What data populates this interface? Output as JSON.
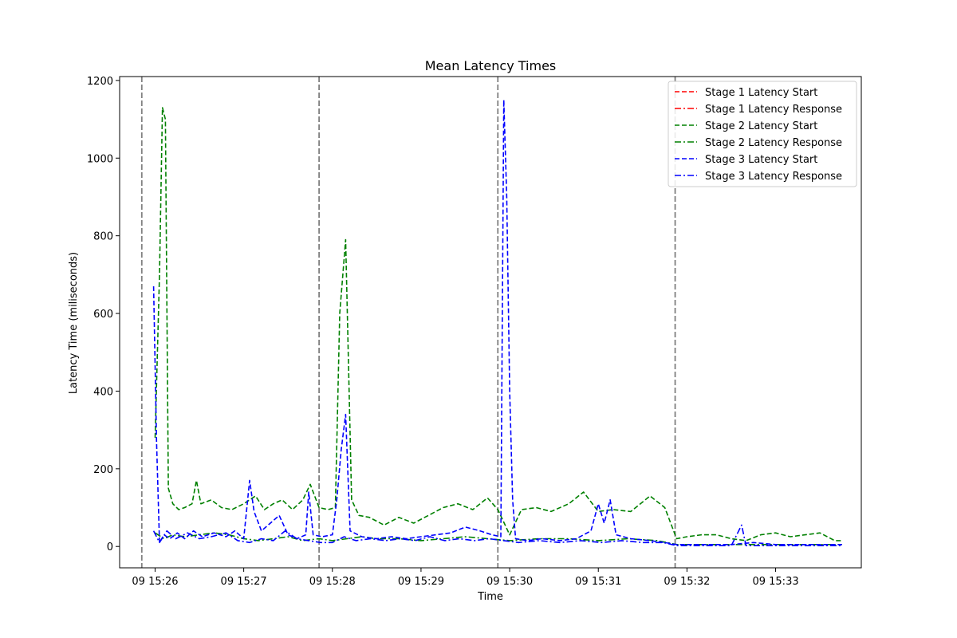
{
  "chart_data": {
    "type": "line",
    "title": "Mean Latency Times",
    "xlabel": "Time",
    "ylabel": "Latency Time (miliseconds)",
    "xlim": [
      "09 15:25:36",
      "09 15:33:58"
    ],
    "ylim": [
      -55,
      1210
    ],
    "x_tick_labels": [
      "09 15:26",
      "09 15:27",
      "09 15:28",
      "09 15:29",
      "09 15:30",
      "09 15:31",
      "09 15:32",
      "09 15:33"
    ],
    "y_ticks": [
      0,
      200,
      400,
      600,
      800,
      1000,
      1200
    ],
    "vlines": [
      "09 15:25:51",
      "09 15:27:51",
      "09 15:29:52",
      "09 15:31:52"
    ],
    "vline_color": "#808080",
    "legend_position": "upper right",
    "series": [
      {
        "name": "Stage 1 Latency Start",
        "color": "#ff0000",
        "dash": "dashed",
        "points": []
      },
      {
        "name": "Stage 1 Latency Response",
        "color": "#ff0000",
        "dash": "dashdot",
        "points": []
      },
      {
        "name": "Stage 2 Latency Start",
        "color": "#008000",
        "dash": "dashed",
        "points": [
          [
            "09 15:26:00",
            280
          ],
          [
            "09 15:26:03",
            700
          ],
          [
            "09 15:26:05",
            1130
          ],
          [
            "09 15:26:07",
            1100
          ],
          [
            "09 15:26:09",
            150
          ],
          [
            "09 15:26:12",
            110
          ],
          [
            "09 15:26:16",
            95
          ],
          [
            "09 15:26:20",
            100
          ],
          [
            "09 15:26:25",
            110
          ],
          [
            "09 15:26:28",
            170
          ],
          [
            "09 15:26:31",
            110
          ],
          [
            "09 15:26:38",
            120
          ],
          [
            "09 15:26:45",
            100
          ],
          [
            "09 15:26:52",
            95
          ],
          [
            "09 15:27:00",
            110
          ],
          [
            "09 15:27:08",
            130
          ],
          [
            "09 15:27:14",
            95
          ],
          [
            "09 15:27:20",
            110
          ],
          [
            "09 15:27:26",
            120
          ],
          [
            "09 15:27:33",
            95
          ],
          [
            "09 15:27:40",
            120
          ],
          [
            "09 15:27:45",
            160
          ],
          [
            "09 15:27:51",
            100
          ],
          [
            "09 15:27:57",
            95
          ],
          [
            "09 15:28:02",
            100
          ],
          [
            "09 15:28:05",
            600
          ],
          [
            "09 15:28:09",
            790
          ],
          [
            "09 15:28:13",
            120
          ],
          [
            "09 15:28:18",
            80
          ],
          [
            "09 15:28:25",
            75
          ],
          [
            "09 15:28:35",
            55
          ],
          [
            "09 15:28:45",
            75
          ],
          [
            "09 15:28:55",
            60
          ],
          [
            "09 15:29:05",
            80
          ],
          [
            "09 15:29:15",
            100
          ],
          [
            "09 15:29:25",
            110
          ],
          [
            "09 15:29:35",
            95
          ],
          [
            "09 15:29:45",
            125
          ],
          [
            "09 15:29:52",
            95
          ],
          [
            "09 15:30:00",
            30
          ],
          [
            "09 15:30:08",
            95
          ],
          [
            "09 15:30:18",
            100
          ],
          [
            "09 15:30:28",
            90
          ],
          [
            "09 15:30:40",
            110
          ],
          [
            "09 15:30:50",
            140
          ],
          [
            "09 15:31:00",
            90
          ],
          [
            "09 15:31:10",
            95
          ],
          [
            "09 15:31:22",
            90
          ],
          [
            "09 15:31:35",
            130
          ],
          [
            "09 15:31:45",
            100
          ],
          [
            "09 15:31:53",
            20
          ],
          [
            "09 15:32:00",
            25
          ],
          [
            "09 15:32:10",
            30
          ],
          [
            "09 15:32:20",
            30
          ],
          [
            "09 15:32:30",
            20
          ],
          [
            "09 15:32:40",
            15
          ],
          [
            "09 15:32:50",
            30
          ],
          [
            "09 15:33:00",
            35
          ],
          [
            "09 15:33:10",
            25
          ],
          [
            "09 15:33:20",
            30
          ],
          [
            "09 15:33:30",
            35
          ],
          [
            "09 15:33:40",
            15
          ],
          [
            "09 15:33:45",
            15
          ]
        ]
      },
      {
        "name": "Stage 2 Latency Response",
        "color": "#008000",
        "dash": "dashdot",
        "points": [
          [
            "09 15:26:00",
            35
          ],
          [
            "09 15:26:06",
            20
          ],
          [
            "09 15:26:12",
            30
          ],
          [
            "09 15:26:20",
            25
          ],
          [
            "09 15:26:30",
            30
          ],
          [
            "09 15:26:40",
            35
          ],
          [
            "09 15:26:50",
            30
          ],
          [
            "09 15:27:00",
            20
          ],
          [
            "09 15:27:10",
            15
          ],
          [
            "09 15:27:20",
            20
          ],
          [
            "09 15:27:30",
            25
          ],
          [
            "09 15:27:40",
            15
          ],
          [
            "09 15:27:51",
            20
          ],
          [
            "09 15:28:00",
            15
          ],
          [
            "09 15:28:10",
            20
          ],
          [
            "09 15:28:20",
            25
          ],
          [
            "09 15:28:30",
            20
          ],
          [
            "09 15:28:45",
            20
          ],
          [
            "09 15:29:00",
            15
          ],
          [
            "09 15:29:15",
            20
          ],
          [
            "09 15:29:30",
            25
          ],
          [
            "09 15:29:45",
            20
          ],
          [
            "09 15:30:00",
            15
          ],
          [
            "09 15:30:20",
            20
          ],
          [
            "09 15:30:40",
            20
          ],
          [
            "09 15:31:00",
            15
          ],
          [
            "09 15:31:20",
            20
          ],
          [
            "09 15:31:40",
            15
          ],
          [
            "09 15:31:53",
            5
          ],
          [
            "09 15:32:20",
            5
          ],
          [
            "09 15:32:50",
            5
          ],
          [
            "09 15:33:20",
            5
          ],
          [
            "09 15:33:45",
            5
          ]
        ]
      },
      {
        "name": "Stage 3 Latency Start",
        "color": "#0000ff",
        "dash": "dashed",
        "points": [
          [
            "09 15:25:59",
            670
          ],
          [
            "09 15:26:01",
            270
          ],
          [
            "09 15:26:03",
            10
          ],
          [
            "09 15:26:06",
            30
          ],
          [
            "09 15:26:10",
            20
          ],
          [
            "09 15:26:15",
            35
          ],
          [
            "09 15:26:20",
            20
          ],
          [
            "09 15:26:26",
            40
          ],
          [
            "09 15:26:32",
            25
          ],
          [
            "09 15:26:40",
            35
          ],
          [
            "09 15:26:48",
            25
          ],
          [
            "09 15:26:54",
            40
          ],
          [
            "09 15:27:00",
            20
          ],
          [
            "09 15:27:04",
            170
          ],
          [
            "09 15:27:07",
            90
          ],
          [
            "09 15:27:12",
            40
          ],
          [
            "09 15:27:18",
            60
          ],
          [
            "09 15:27:24",
            80
          ],
          [
            "09 15:27:30",
            30
          ],
          [
            "09 15:27:36",
            20
          ],
          [
            "09 15:27:42",
            30
          ],
          [
            "09 15:27:44",
            140
          ],
          [
            "09 15:27:47",
            30
          ],
          [
            "09 15:27:53",
            25
          ],
          [
            "09 15:28:00",
            30
          ],
          [
            "09 15:28:03",
            120
          ],
          [
            "09 15:28:06",
            250
          ],
          [
            "09 15:28:09",
            340
          ],
          [
            "09 15:28:12",
            40
          ],
          [
            "09 15:28:20",
            25
          ],
          [
            "09 15:28:30",
            20
          ],
          [
            "09 15:28:40",
            25
          ],
          [
            "09 15:28:50",
            20
          ],
          [
            "09 15:29:00",
            25
          ],
          [
            "09 15:29:10",
            30
          ],
          [
            "09 15:29:20",
            35
          ],
          [
            "09 15:29:30",
            50
          ],
          [
            "09 15:29:40",
            40
          ],
          [
            "09 15:29:48",
            30
          ],
          [
            "09 15:29:54",
            25
          ],
          [
            "09 15:29:56",
            1150
          ],
          [
            "09 15:29:58",
            900
          ],
          [
            "09 15:30:00",
            400
          ],
          [
            "09 15:30:02",
            120
          ],
          [
            "09 15:30:04",
            20
          ],
          [
            "09 15:30:12",
            15
          ],
          [
            "09 15:30:22",
            20
          ],
          [
            "09 15:30:34",
            15
          ],
          [
            "09 15:30:45",
            20
          ],
          [
            "09 15:30:55",
            40
          ],
          [
            "09 15:31:00",
            110
          ],
          [
            "09 15:31:04",
            60
          ],
          [
            "09 15:31:08",
            120
          ],
          [
            "09 15:31:12",
            30
          ],
          [
            "09 15:31:22",
            20
          ],
          [
            "09 15:31:35",
            15
          ],
          [
            "09 15:31:45",
            10
          ],
          [
            "09 15:31:53",
            5
          ],
          [
            "09 15:32:10",
            5
          ],
          [
            "09 15:32:30",
            5
          ],
          [
            "09 15:32:45",
            10
          ],
          [
            "09 15:33:00",
            5
          ],
          [
            "09 15:33:20",
            5
          ],
          [
            "09 15:33:45",
            5
          ]
        ]
      },
      {
        "name": "Stage 3 Latency Response",
        "color": "#0000ff",
        "dash": "dashdot",
        "points": [
          [
            "09 15:25:59",
            40
          ],
          [
            "09 15:26:03",
            10
          ],
          [
            "09 15:26:08",
            40
          ],
          [
            "09 15:26:14",
            20
          ],
          [
            "09 15:26:22",
            35
          ],
          [
            "09 15:26:30",
            20
          ],
          [
            "09 15:26:38",
            25
          ],
          [
            "09 15:26:48",
            35
          ],
          [
            "09 15:26:56",
            15
          ],
          [
            "09 15:27:04",
            10
          ],
          [
            "09 15:27:12",
            20
          ],
          [
            "09 15:27:20",
            15
          ],
          [
            "09 15:27:28",
            40
          ],
          [
            "09 15:27:36",
            20
          ],
          [
            "09 15:27:44",
            15
          ],
          [
            "09 15:27:52",
            10
          ],
          [
            "09 15:28:00",
            10
          ],
          [
            "09 15:28:08",
            25
          ],
          [
            "09 15:28:16",
            15
          ],
          [
            "09 15:28:26",
            20
          ],
          [
            "09 15:28:36",
            15
          ],
          [
            "09 15:28:46",
            20
          ],
          [
            "09 15:28:56",
            15
          ],
          [
            "09 15:29:06",
            25
          ],
          [
            "09 15:29:16",
            15
          ],
          [
            "09 15:29:26",
            20
          ],
          [
            "09 15:29:36",
            15
          ],
          [
            "09 15:29:46",
            20
          ],
          [
            "09 15:29:56",
            15
          ],
          [
            "09 15:30:06",
            10
          ],
          [
            "09 15:30:20",
            15
          ],
          [
            "09 15:30:34",
            10
          ],
          [
            "09 15:30:48",
            15
          ],
          [
            "09 15:31:02",
            10
          ],
          [
            "09 15:31:16",
            15
          ],
          [
            "09 15:31:30",
            10
          ],
          [
            "09 15:31:44",
            10
          ],
          [
            "09 15:31:53",
            2
          ],
          [
            "09 15:32:15",
            2
          ],
          [
            "09 15:32:30",
            2
          ],
          [
            "09 15:32:37",
            55
          ],
          [
            "09 15:32:40",
            2
          ],
          [
            "09 15:33:00",
            2
          ],
          [
            "09 15:33:25",
            2
          ],
          [
            "09 15:33:45",
            2
          ]
        ]
      }
    ]
  }
}
